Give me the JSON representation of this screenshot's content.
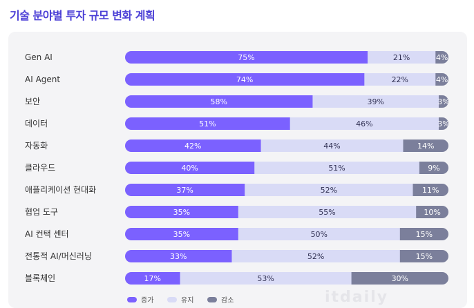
{
  "title": "기술 분야별 투자 규모 변화 계획",
  "chart_data": {
    "type": "bar",
    "orientation": "horizontal",
    "stacked": true,
    "normalized": true,
    "categories": [
      "Gen AI",
      "AI Agent",
      "보안",
      "데이터",
      "자동화",
      "클라우드",
      "애플리케이션 현대화",
      "협업 도구",
      "AI 컨택 센터",
      "전통적 AI/머신러닝",
      "블록체인"
    ],
    "series": [
      {
        "name": "증가",
        "color": "#7b61ff",
        "values": [
          75,
          74,
          58,
          51,
          42,
          40,
          37,
          35,
          35,
          33,
          17
        ]
      },
      {
        "name": "유지",
        "color": "#d9dbf6",
        "values": [
          21,
          22,
          39,
          46,
          44,
          51,
          52,
          55,
          50,
          52,
          53
        ]
      },
      {
        "name": "감소",
        "color": "#7b7f9b",
        "values": [
          4,
          4,
          3,
          3,
          14,
          9,
          11,
          10,
          15,
          15,
          30
        ]
      }
    ],
    "legend_position": "bottom",
    "value_suffix": "%"
  },
  "watermark": "itdaily"
}
